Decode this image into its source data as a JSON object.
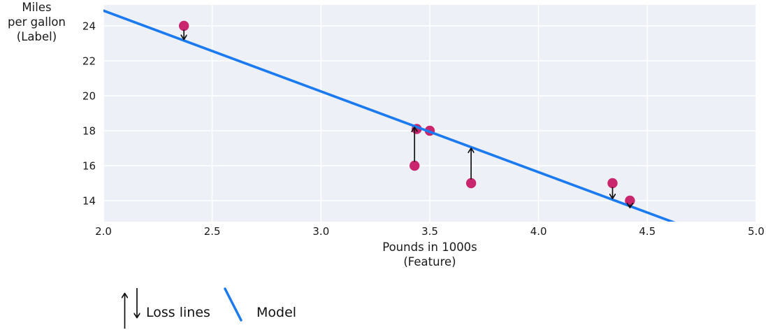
{
  "chart_data": {
    "type": "scatter",
    "title": "",
    "xlabel": "Pounds in 1000s\n(Feature)",
    "ylabel": "Miles\nper gallon\n(Label)",
    "xlim": [
      2.0,
      5.0
    ],
    "ylim": [
      12.8,
      25.2
    ],
    "grid": true,
    "x_ticks": [
      {
        "value": 2.0,
        "label": "2.0"
      },
      {
        "value": 2.5,
        "label": "2.5"
      },
      {
        "value": 3.0,
        "label": "3.0"
      },
      {
        "value": 3.5,
        "label": "3.5"
      },
      {
        "value": 4.0,
        "label": "4.0"
      },
      {
        "value": 4.5,
        "label": "4.5"
      },
      {
        "value": 5.0,
        "label": "5.0"
      }
    ],
    "y_ticks": [
      {
        "value": 14,
        "label": "14"
      },
      {
        "value": 16,
        "label": "16"
      },
      {
        "value": 18,
        "label": "18"
      },
      {
        "value": 20,
        "label": "20"
      },
      {
        "value": 22,
        "label": "22"
      },
      {
        "value": 24,
        "label": "24"
      }
    ],
    "points": [
      {
        "x": 2.37,
        "y": 24,
        "loss_line": true
      },
      {
        "x": 3.44,
        "y": 18.1,
        "loss_line": false
      },
      {
        "x": 3.5,
        "y": 18,
        "loss_line": false
      },
      {
        "x": 3.43,
        "y": 16,
        "loss_line": true
      },
      {
        "x": 3.69,
        "y": 15,
        "loss_line": true
      },
      {
        "x": 4.34,
        "y": 15,
        "loss_line": true
      },
      {
        "x": 4.42,
        "y": 14,
        "loss_line": true
      }
    ],
    "model": {
      "slope": -4.62,
      "intercept": 34.11
    },
    "legend": {
      "loss_label": "Loss lines",
      "model_label": "Model"
    },
    "colors": {
      "plot_background": "#edf0f6",
      "gridline": "#ffffff",
      "model_line": "#1b7af0",
      "data_point": "#c9266d",
      "loss_arrow": "#111111",
      "text": "#1a1a1a"
    }
  }
}
